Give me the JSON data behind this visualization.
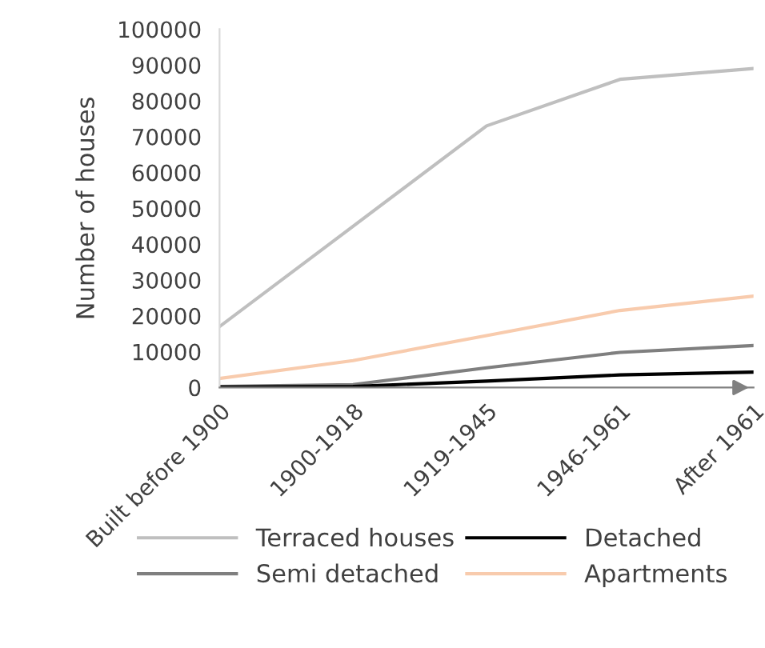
{
  "chart_data": {
    "type": "line",
    "ylabel": "Number of houses",
    "categories": [
      "Built before 1900",
      "1900-1918",
      "1919-1945",
      "1946-1961",
      "After 1961"
    ],
    "series": [
      {
        "name": "Terraced houses",
        "color": "#bfbfbf",
        "values": [
          17000,
          45000,
          73000,
          86000,
          89000
        ]
      },
      {
        "name": "Semi detached",
        "color": "#7f7f7f",
        "values": [
          300,
          800,
          5500,
          9800,
          11700
        ]
      },
      {
        "name": "Detached",
        "color": "#000000",
        "values": [
          100,
          300,
          1800,
          3500,
          4300
        ]
      },
      {
        "name": "Apartments",
        "color": "#f8cbad",
        "values": [
          2500,
          7500,
          14500,
          21500,
          25500
        ]
      }
    ],
    "ylim": [
      0,
      100000
    ],
    "yticks": [
      0,
      10000,
      20000,
      30000,
      40000,
      50000,
      60000,
      70000,
      80000,
      90000,
      100000
    ],
    "grid": false,
    "legend": "bottom",
    "marker": "none",
    "line_style": "solid"
  }
}
